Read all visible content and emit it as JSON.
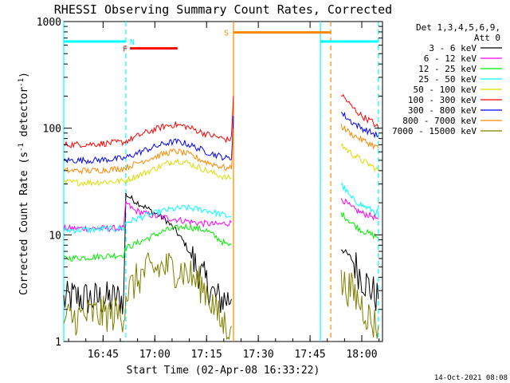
{
  "chart_data": {
    "type": "line",
    "title": "RHESSI Observing Summary Count Rates, Corrected",
    "xlabel": "Start Time (02-Apr-08 16:33:22)",
    "ylabel": "Corrected Count Rate (s",
    "ylabel_sup": "-1",
    "ylabel_tail": " detector",
    "ylabel_close": ")",
    "y_scale": "log",
    "xlim": [
      16.56,
      18.1
    ],
    "ylim": [
      1,
      1000
    ],
    "x_ticks": [
      {
        "value": 16.75,
        "label": "16:45"
      },
      {
        "value": 17.0,
        "label": "17:00"
      },
      {
        "value": 17.25,
        "label": "17:15"
      },
      {
        "value": 17.5,
        "label": "17:30"
      },
      {
        "value": 17.75,
        "label": "17:45"
      },
      {
        "value": 18.0,
        "label": "18:00"
      }
    ],
    "y_ticks": [
      {
        "value": 1,
        "label": "1"
      },
      {
        "value": 10,
        "label": "10"
      },
      {
        "value": 100,
        "label": "100"
      },
      {
        "value": 1000,
        "label": "1000"
      }
    ],
    "legend": {
      "placement": "right",
      "header": [
        "Det 1,3,4,5,6,9,",
        "Att 0"
      ]
    },
    "series": [
      {
        "name": "3 - 6 keV",
        "color": "#000000",
        "segments": [
          [
            [
              16.56,
              2.4
            ],
            [
              16.6,
              2.6
            ],
            [
              16.7,
              2.5
            ],
            [
              16.85,
              2.5
            ],
            [
              16.86,
              24
            ],
            [
              16.9,
              21
            ],
            [
              17.0,
              16
            ],
            [
              17.05,
              14
            ],
            [
              17.1,
              11
            ],
            [
              17.15,
              8
            ],
            [
              17.2,
              5
            ],
            [
              17.25,
              3.5
            ],
            [
              17.3,
              2.5
            ],
            [
              17.37,
              2.5
            ]
          ],
          [
            [
              17.9,
              7.5
            ],
            [
              17.95,
              6
            ],
            [
              18.0,
              4
            ],
            [
              18.05,
              3
            ],
            [
              18.08,
              2.5
            ]
          ]
        ]
      },
      {
        "name": "6 - 12 keV",
        "color": "#ff00ff",
        "segments": [
          [
            [
              16.56,
              11.5
            ],
            [
              16.7,
              11.5
            ],
            [
              16.85,
              11.5
            ],
            [
              16.86,
              20
            ],
            [
              16.9,
              17
            ],
            [
              17.0,
              15
            ],
            [
              17.1,
              14
            ],
            [
              17.2,
              13
            ],
            [
              17.3,
              12.5
            ],
            [
              17.37,
              13
            ]
          ],
          [
            [
              17.9,
              22
            ],
            [
              17.95,
              18
            ],
            [
              18.0,
              16
            ],
            [
              18.05,
              15
            ],
            [
              18.08,
              14
            ]
          ]
        ]
      },
      {
        "name": "12 - 25 keV",
        "color": "#00ee00",
        "segments": [
          [
            [
              16.56,
              6
            ],
            [
              16.7,
              6.2
            ],
            [
              16.85,
              6.5
            ],
            [
              16.86,
              7.5
            ],
            [
              16.95,
              9
            ],
            [
              17.05,
              11
            ],
            [
              17.15,
              12
            ],
            [
              17.25,
              11
            ],
            [
              17.35,
              8
            ],
            [
              17.37,
              8
            ]
          ],
          [
            [
              17.9,
              16
            ],
            [
              17.95,
              13
            ],
            [
              18.0,
              11
            ],
            [
              18.05,
              10
            ],
            [
              18.08,
              9.5
            ]
          ]
        ]
      },
      {
        "name": "25 - 50 keV",
        "color": "#00ffff",
        "segments": [
          [
            [
              16.56,
              11
            ],
            [
              16.7,
              11.2
            ],
            [
              16.85,
              11.5
            ],
            [
              16.86,
              13
            ],
            [
              16.95,
              15
            ],
            [
              17.05,
              17
            ],
            [
              17.15,
              18
            ],
            [
              17.25,
              17
            ],
            [
              17.35,
              15
            ],
            [
              17.37,
              15
            ]
          ],
          [
            [
              17.9,
              30
            ],
            [
              17.95,
              22
            ],
            [
              18.0,
              19
            ],
            [
              18.05,
              17
            ],
            [
              18.08,
              16
            ]
          ]
        ]
      },
      {
        "name": "50 - 100 keV",
        "color": "#dddd00",
        "segments": [
          [
            [
              16.56,
              31
            ],
            [
              16.7,
              31
            ],
            [
              16.85,
              32
            ],
            [
              16.95,
              38
            ],
            [
              17.05,
              46
            ],
            [
              17.1,
              50
            ],
            [
              17.15,
              48
            ],
            [
              17.25,
              40
            ],
            [
              17.35,
              34
            ],
            [
              17.37,
              34
            ]
          ],
          [
            [
              17.9,
              70
            ],
            [
              17.95,
              58
            ],
            [
              18.0,
              50
            ],
            [
              18.05,
              44
            ],
            [
              18.08,
              40
            ]
          ]
        ]
      },
      {
        "name": "100 - 300 keV",
        "color": "#ff0000",
        "segments": [
          [
            [
              16.56,
              70
            ],
            [
              16.7,
              71
            ],
            [
              16.85,
              74
            ],
            [
              16.95,
              90
            ],
            [
              17.05,
              105
            ],
            [
              17.1,
              108
            ],
            [
              17.15,
              104
            ],
            [
              17.25,
              88
            ],
            [
              17.35,
              78
            ],
            [
              17.37,
              80
            ],
            [
              17.38,
              200
            ]
          ],
          [
            [
              17.9,
              210
            ],
            [
              17.95,
              160
            ],
            [
              18.0,
              130
            ],
            [
              18.05,
              115
            ],
            [
              18.08,
              100
            ]
          ]
        ]
      },
      {
        "name": "300 - 800 keV",
        "color": "#0000ff",
        "segments": [
          [
            [
              16.56,
              50
            ],
            [
              16.7,
              50
            ],
            [
              16.85,
              52
            ],
            [
              16.95,
              62
            ],
            [
              17.05,
              72
            ],
            [
              17.1,
              75
            ],
            [
              17.15,
              72
            ],
            [
              17.25,
              60
            ],
            [
              17.35,
              52
            ],
            [
              17.37,
              52
            ],
            [
              17.38,
              130
            ]
          ],
          [
            [
              17.9,
              140
            ],
            [
              17.95,
              115
            ],
            [
              18.0,
              100
            ],
            [
              18.05,
              90
            ],
            [
              18.08,
              85
            ]
          ]
        ]
      },
      {
        "name": "800 - 7000 keV",
        "color": "#ff8800",
        "segments": [
          [
            [
              16.56,
              40
            ],
            [
              16.7,
              40
            ],
            [
              16.85,
              42
            ],
            [
              16.95,
              50
            ],
            [
              17.05,
              58
            ],
            [
              17.1,
              61
            ],
            [
              17.15,
              58
            ],
            [
              17.25,
              48
            ],
            [
              17.35,
              42
            ],
            [
              17.37,
              42
            ],
            [
              17.38,
              100
            ]
          ],
          [
            [
              17.9,
              105
            ],
            [
              17.95,
              88
            ],
            [
              18.0,
              78
            ],
            [
              18.05,
              70
            ],
            [
              18.08,
              65
            ]
          ]
        ]
      },
      {
        "name": "7000 - 15000 keV",
        "color": "#808000",
        "segments": [
          [
            [
              16.56,
              1.6
            ],
            [
              16.7,
              1.8
            ],
            [
              16.85,
              1.8
            ],
            [
              16.86,
              2.8
            ],
            [
              16.95,
              4.5
            ],
            [
              17.05,
              5
            ],
            [
              17.15,
              4.5
            ],
            [
              17.25,
              3
            ],
            [
              17.32,
              1.5
            ],
            [
              17.37,
              1.4
            ]
          ],
          [
            [
              17.9,
              3.5
            ],
            [
              17.95,
              3
            ],
            [
              18.0,
              2.2
            ],
            [
              18.05,
              1.5
            ],
            [
              18.08,
              1.4
            ]
          ]
        ]
      }
    ],
    "flag_bars": [
      {
        "label": "N",
        "color": "#00ffff",
        "y": 650,
        "ranges": [
          [
            16.56,
            16.86
          ],
          [
            17.8,
            18.08
          ]
        ]
      },
      {
        "label": "F",
        "color": "#ff0000",
        "y": 560,
        "ranges": [
          [
            16.88,
            17.11
          ]
        ]
      },
      {
        "label": "S",
        "color": "#ff8800",
        "y": 790,
        "ranges": [
          [
            17.38,
            17.85
          ]
        ]
      }
    ],
    "vlines": [
      {
        "x": 16.56,
        "color": "#00ffff",
        "dash": false
      },
      {
        "x": 16.86,
        "color": "#00ffff",
        "dash": true
      },
      {
        "x": 17.38,
        "color": "#ff8800",
        "dash": false
      },
      {
        "x": 17.8,
        "color": "#00ffff",
        "dash": false
      },
      {
        "x": 17.85,
        "color": "#ff8800",
        "dash": true
      },
      {
        "x": 18.08,
        "color": "#00ffff",
        "dash": true
      }
    ],
    "timestamp": "14-Oct-2021 08:08"
  }
}
